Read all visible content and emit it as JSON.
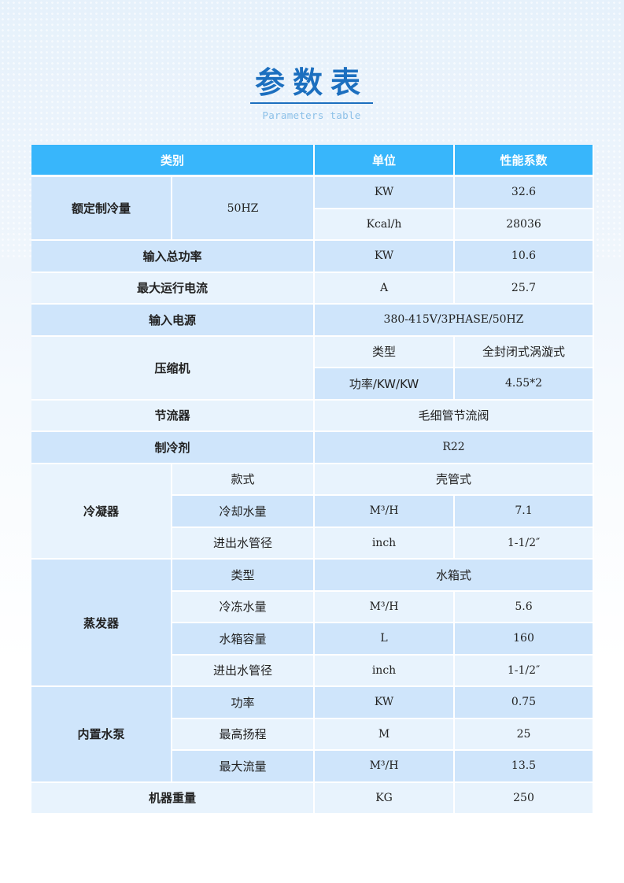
{
  "title": "参数表",
  "subtitle": "Parameters table",
  "colors": {
    "header": "#38b6fb",
    "row_dark": "#cfe5fb",
    "row_light": "#e8f3fd",
    "title": "#1c6fbf"
  },
  "headers": [
    "类别",
    "单位",
    "性能系数"
  ],
  "rows": {
    "cooling": {
      "label": "额定制冷量",
      "freq": "50HZ",
      "u1": "KW",
      "v1": "32.6",
      "u2": "Kcal/h",
      "v2": "28036"
    },
    "power": {
      "label": "输入总功率",
      "unit": "KW",
      "value": "10.6"
    },
    "current": {
      "label": "最大运行电流",
      "unit": "A",
      "value": "25.7"
    },
    "supply": {
      "label": "输入电源",
      "value": "380-415V/3PHASE/50HZ"
    },
    "compressor": {
      "label": "压缩机",
      "k1": "类型",
      "v1": "全封闭式涡漩式",
      "k2": "功率/KW/KW",
      "v2": "4.55*2"
    },
    "throttle": {
      "label": "节流器",
      "value": "毛细管节流阀"
    },
    "refrigerant": {
      "label": "制冷剂",
      "value": "R22"
    },
    "condenser": {
      "label": "冷凝器",
      "k1": "款式",
      "v1": "壳管式",
      "k2": "冷却水量",
      "u2": "M³/H",
      "v2": "7.1",
      "k3": "进出水管径",
      "u3": "inch",
      "v3": "1-1/2″"
    },
    "evaporator": {
      "label": "蒸发器",
      "k1": "类型",
      "v1": "水箱式",
      "k2": "冷冻水量",
      "u2": "M³/H",
      "v2": "5.6",
      "k3": "水箱容量",
      "u3": "L",
      "v3": "160",
      "k4": "进出水管径",
      "u4": "inch",
      "v4": "1-1/2″"
    },
    "pump": {
      "label": "内置水泵",
      "k1": "功率",
      "u1": "KW",
      "v1": "0.75",
      "k2": "最高扬程",
      "u2": "M",
      "v2": "25",
      "k3": "最大流量",
      "u3": "M³/H",
      "v3": "13.5"
    },
    "weight": {
      "label": "机器重量",
      "unit": "KG",
      "value": "250"
    }
  }
}
